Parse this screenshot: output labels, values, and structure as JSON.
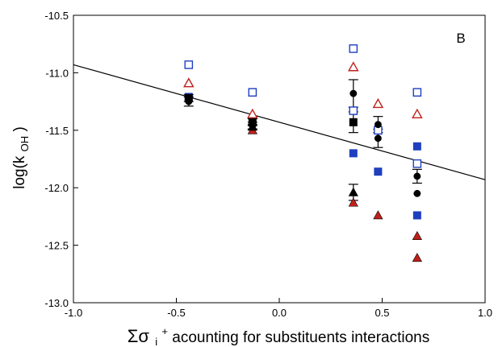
{
  "chart_data": {
    "type": "scatter",
    "panel_label": "B",
    "xlabel": {
      "sigma": "Σσ",
      "sub": "i",
      "sup": "+",
      "rest": "acounting for substituents interactions"
    },
    "ylabel": {
      "main": "log(k",
      "sub": "OH",
      "close": ")"
    },
    "xlim": [
      -1.0,
      1.0
    ],
    "ylim": [
      -13.0,
      -10.5
    ],
    "xticks": [
      "-1.0",
      "-0.5",
      "0.0",
      "0.5",
      "1.0"
    ],
    "yticks": [
      "-13.0",
      "-12.5",
      "-12.0",
      "-11.5",
      "-11.0",
      "-10.5"
    ],
    "fit_line": {
      "x": [
        -1.0,
        1.0
      ],
      "y": [
        -10.93,
        -11.93
      ]
    },
    "series": [
      {
        "marker": "open-square",
        "color": "#1f3fbf",
        "points": [
          [
            -0.44,
            -10.93
          ],
          [
            -0.13,
            -11.17
          ],
          [
            0.36,
            -10.79
          ],
          [
            0.36,
            -11.33
          ],
          [
            0.48,
            -11.5
          ],
          [
            0.67,
            -11.17
          ],
          [
            0.67,
            -11.79
          ]
        ]
      },
      {
        "marker": "filled-square",
        "color": "#1f3fbf",
        "points": [
          [
            -0.44,
            -11.21
          ],
          [
            0.36,
            -11.7
          ],
          [
            0.48,
            -11.86
          ],
          [
            0.67,
            -11.64
          ],
          [
            0.67,
            -12.24
          ]
        ]
      },
      {
        "marker": "open-triangle",
        "color": "#c0201a",
        "points": [
          [
            -0.44,
            -11.09
          ],
          [
            -0.13,
            -11.36
          ],
          [
            0.36,
            -10.95
          ],
          [
            0.48,
            -11.27
          ],
          [
            0.67,
            -11.36
          ]
        ]
      },
      {
        "marker": "filled-triangle",
        "color": "#c0201a",
        "points": [
          [
            -0.13,
            -11.5
          ],
          [
            0.36,
            -12.13
          ],
          [
            0.48,
            -12.24
          ],
          [
            0.67,
            -12.42
          ],
          [
            0.67,
            -12.61
          ]
        ]
      },
      {
        "marker": "filled-circle",
        "color": "#000000",
        "points": [
          [
            -0.44,
            -11.25
          ],
          [
            -0.13,
            -11.46
          ],
          [
            0.36,
            -11.18
          ],
          [
            0.48,
            -11.45
          ],
          [
            0.48,
            -11.57
          ],
          [
            0.67,
            -11.9
          ],
          [
            0.67,
            -12.05
          ]
        ],
        "errors": [
          0.04,
          0.03,
          0.12,
          0.07,
          0.08,
          0.06,
          0
        ]
      },
      {
        "marker": "filled-square",
        "color": "#000000",
        "points": [
          [
            -0.44,
            -11.22
          ],
          [
            -0.13,
            -11.43
          ],
          [
            0.36,
            -11.43
          ]
        ],
        "errors": [
          0.03,
          0.03,
          0.09
        ]
      },
      {
        "marker": "filled-triangle",
        "color": "#000000",
        "points": [
          [
            -0.13,
            -11.47
          ],
          [
            0.36,
            -12.04
          ]
        ],
        "errors": [
          0.02,
          0.07
        ]
      }
    ]
  }
}
